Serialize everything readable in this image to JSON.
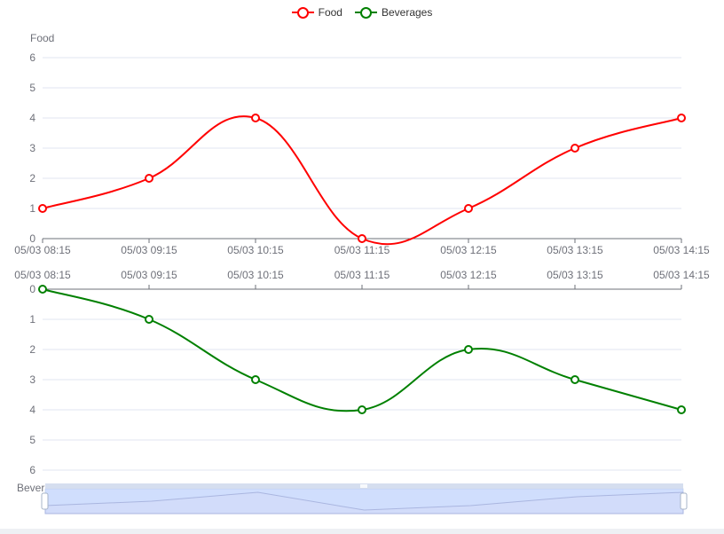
{
  "chart_data": {
    "type": "line",
    "categories": [
      "05/03 08:15",
      "05/03 09:15",
      "05/03 10:15",
      "05/03 11:15",
      "05/03 12:15",
      "05/03 13:15",
      "05/03 14:15"
    ],
    "series": [
      {
        "name": "Food",
        "values": [
          1,
          2,
          4,
          0,
          1,
          3,
          4
        ],
        "color": "#ff0000"
      },
      {
        "name": "Beverages",
        "values": [
          0,
          1,
          3,
          4,
          2,
          3,
          4
        ],
        "color": "#008000"
      }
    ],
    "top_chart": {
      "ylabel": "Food",
      "ylim": [
        0,
        6
      ],
      "yticks": [
        0,
        1,
        2,
        3,
        4,
        5,
        6
      ]
    },
    "bottom_chart": {
      "ylabel": "Beverages",
      "ylim": [
        0,
        6
      ],
      "yticks": [
        0,
        1,
        2,
        3,
        4,
        5,
        6
      ],
      "inverted": true
    },
    "legend_position": "top-center",
    "grid": true,
    "smooth": true,
    "data_zoom": {
      "range_percent": [
        0,
        100
      ]
    }
  },
  "colors": {
    "grid": "#e0e6f1",
    "axis": "#6e7079",
    "zoom_fill": "#d2dcfa",
    "zoom_line": "#aab6e0"
  }
}
